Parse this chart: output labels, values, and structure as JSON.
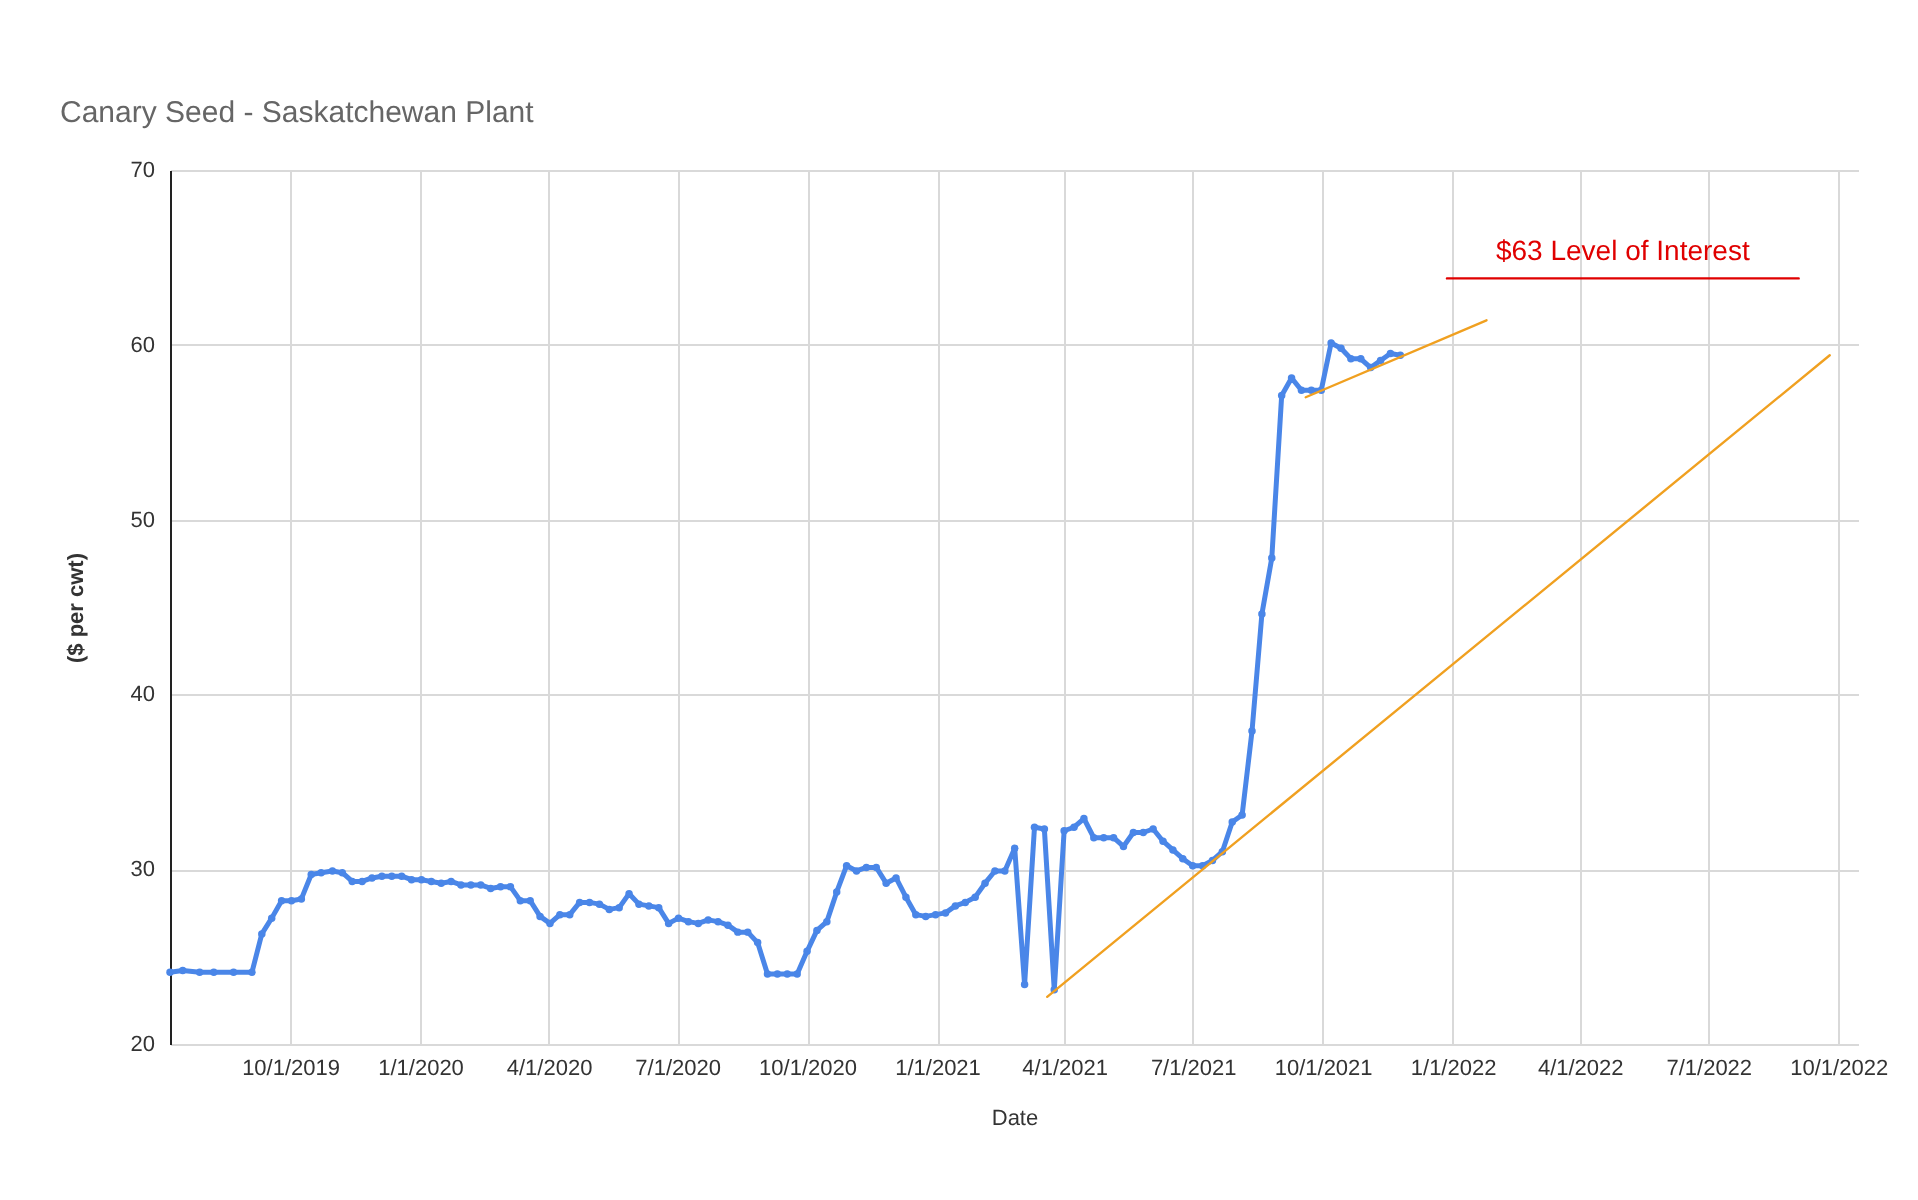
{
  "chart_data": {
    "type": "line",
    "title": "Canary Seed  - Saskatchewan Plant",
    "xlabel": "Date",
    "ylabel": "($ per cwt)",
    "xlim": [
      "2019-07-08",
      "2022-10-15"
    ],
    "xticks": [
      {
        "value": "2019-10-01",
        "label": "10/1/2019"
      },
      {
        "value": "2020-01-01",
        "label": "1/1/2020"
      },
      {
        "value": "2020-04-01",
        "label": "4/1/2020"
      },
      {
        "value": "2020-07-01",
        "label": "7/1/2020"
      },
      {
        "value": "2020-10-01",
        "label": "10/1/2020"
      },
      {
        "value": "2021-01-01",
        "label": "1/1/2021"
      },
      {
        "value": "2021-04-01",
        "label": "4/1/2021"
      },
      {
        "value": "2021-07-01",
        "label": "7/1/2021"
      },
      {
        "value": "2021-10-01",
        "label": "10/1/2021"
      },
      {
        "value": "2022-01-01",
        "label": "1/1/2022"
      },
      {
        "value": "2022-04-01",
        "label": "4/1/2022"
      },
      {
        "value": "2022-07-01",
        "label": "7/1/2022"
      },
      {
        "value": "2022-10-01",
        "label": "10/1/2022"
      }
    ],
    "ylim": [
      20,
      70
    ],
    "yticks": [
      20,
      30,
      40,
      50,
      60,
      70
    ],
    "grid": true,
    "marker": "circle",
    "line_style": "solid",
    "series": [
      {
        "color": "#4a86e8",
        "x": [
          "2019-07-08",
          "2019-07-17",
          "2019-07-29",
          "2019-08-08",
          "2019-08-22",
          "2019-09-04",
          "2019-09-11",
          "2019-09-18",
          "2019-09-25",
          "2019-10-02",
          "2019-10-09",
          "2019-10-16",
          "2019-10-23",
          "2019-10-31",
          "2019-11-07",
          "2019-11-14",
          "2019-11-21",
          "2019-11-28",
          "2019-12-05",
          "2019-12-12",
          "2019-12-19",
          "2019-12-26",
          "2020-01-02",
          "2020-01-09",
          "2020-01-16",
          "2020-01-23",
          "2020-01-30",
          "2020-02-06",
          "2020-02-13",
          "2020-02-20",
          "2020-02-27",
          "2020-03-05",
          "2020-03-12",
          "2020-03-19",
          "2020-03-26",
          "2020-04-02",
          "2020-04-09",
          "2020-04-16",
          "2020-04-23",
          "2020-04-30",
          "2020-05-07",
          "2020-05-14",
          "2020-05-21",
          "2020-05-28",
          "2020-06-04",
          "2020-06-11",
          "2020-06-18",
          "2020-06-25",
          "2020-07-02",
          "2020-07-09",
          "2020-07-16",
          "2020-07-23",
          "2020-07-30",
          "2020-08-06",
          "2020-08-13",
          "2020-08-20",
          "2020-08-27",
          "2020-09-03",
          "2020-09-10",
          "2020-09-17",
          "2020-09-24",
          "2020-10-01",
          "2020-10-08",
          "2020-10-15",
          "2020-10-22",
          "2020-10-29",
          "2020-11-05",
          "2020-11-12",
          "2020-11-19",
          "2020-11-26",
          "2020-12-03",
          "2020-12-10",
          "2020-12-17",
          "2020-12-24",
          "2020-12-31",
          "2021-01-07",
          "2021-01-14",
          "2021-01-21",
          "2021-01-28",
          "2021-02-04",
          "2021-02-11",
          "2021-02-18",
          "2021-02-25",
          "2021-03-04",
          "2021-03-11",
          "2021-03-18",
          "2021-03-25",
          "2021-04-01",
          "2021-04-08",
          "2021-04-15",
          "2021-04-22",
          "2021-04-29",
          "2021-05-06",
          "2021-05-13",
          "2021-05-20",
          "2021-05-27",
          "2021-06-03",
          "2021-06-10",
          "2021-06-17",
          "2021-06-24",
          "2021-07-01",
          "2021-07-08",
          "2021-07-15",
          "2021-07-22",
          "2021-07-29",
          "2021-08-05",
          "2021-08-12",
          "2021-08-19",
          "2021-08-26",
          "2021-09-02",
          "2021-09-09",
          "2021-09-16",
          "2021-09-23",
          "2021-09-30",
          "2021-10-07",
          "2021-10-14",
          "2021-10-21",
          "2021-10-28",
          "2021-11-04",
          "2021-11-11",
          "2021-11-18",
          "2021-11-25"
        ],
        "values": [
          24.1,
          24.2,
          24.1,
          24.1,
          24.1,
          24.1,
          26.3,
          27.2,
          28.2,
          28.2,
          28.3,
          29.7,
          29.8,
          29.9,
          29.8,
          29.3,
          29.3,
          29.5,
          29.6,
          29.6,
          29.6,
          29.4,
          29.4,
          29.3,
          29.2,
          29.3,
          29.1,
          29.1,
          29.1,
          28.9,
          29.0,
          29.0,
          28.2,
          28.2,
          27.3,
          26.9,
          27.4,
          27.4,
          28.1,
          28.1,
          28.0,
          27.7,
          27.8,
          28.6,
          28.0,
          27.9,
          27.8,
          26.9,
          27.2,
          27.0,
          26.9,
          27.1,
          27.0,
          26.8,
          26.4,
          26.4,
          25.8,
          24.0,
          24.0,
          24.0,
          24.0,
          25.3,
          26.5,
          27.0,
          28.7,
          30.2,
          29.9,
          30.1,
          30.1,
          29.2,
          29.5,
          28.4,
          27.4,
          27.3,
          27.4,
          27.5,
          27.9,
          28.1,
          28.4,
          29.2,
          29.9,
          29.9,
          31.2,
          23.4,
          32.4,
          32.3,
          23.1,
          32.2,
          32.4,
          32.9,
          31.8,
          31.8,
          31.8,
          31.3,
          32.1,
          32.1,
          32.3,
          31.6,
          31.1,
          30.6,
          30.2,
          30.2,
          30.5,
          31.0,
          32.7,
          33.1,
          37.9,
          44.6,
          47.8,
          57.1,
          58.1,
          57.4,
          57.4,
          57.4,
          60.1,
          59.8,
          59.2,
          59.2,
          58.7,
          59.1,
          59.5,
          59.4
        ]
      },
      {
        "color": "#f0a020",
        "marker": "none",
        "x": [
          "2021-03-20",
          "2022-09-25"
        ],
        "values": [
          22.7,
          59.4
        ]
      },
      {
        "color": "#f0a020",
        "marker": "none",
        "x": [
          "2021-09-19",
          "2022-01-25"
        ],
        "values": [
          57.0,
          61.4
        ]
      },
      {
        "name": "$63 Level of Interest",
        "color": "#e00000",
        "marker": "none",
        "x": [
          "2021-12-28",
          "2022-09-03"
        ],
        "values": [
          63.8,
          63.8
        ]
      }
    ]
  }
}
